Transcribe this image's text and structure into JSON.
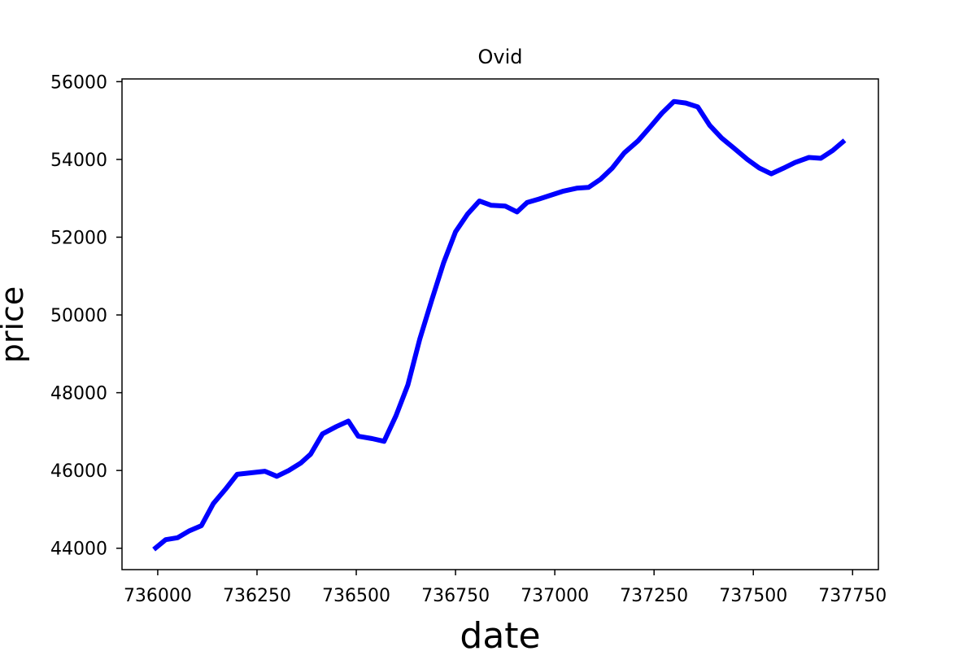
{
  "chart_data": {
    "type": "line",
    "title": "Ovid",
    "xlabel": "date",
    "ylabel": "price",
    "xlim": [
      735910,
      737815
    ],
    "ylim": [
      43450,
      56070
    ],
    "xticks": [
      736000,
      736250,
      736500,
      736750,
      737000,
      737250,
      737500,
      737750
    ],
    "yticks": [
      44000,
      46000,
      48000,
      50000,
      52000,
      54000,
      56000
    ],
    "grid": false,
    "legend": "none",
    "series": [
      {
        "color": "#0000ff",
        "x": [
          735990,
          736020,
          736050,
          736080,
          736110,
          736140,
          736170,
          736200,
          736235,
          736270,
          736300,
          736330,
          736360,
          736385,
          736415,
          736450,
          736480,
          736505,
          736540,
          736570,
          736600,
          736630,
          736660,
          736690,
          736720,
          736750,
          736780,
          736810,
          736840,
          736875,
          736905,
          736930,
          736960,
          736990,
          737020,
          737055,
          737085,
          737115,
          737145,
          737175,
          737210,
          737240,
          737270,
          737300,
          737330,
          737360,
          737390,
          737420,
          737450,
          737485,
          737515,
          737545,
          737575,
          737605,
          737640,
          737670,
          737700,
          737730
        ],
        "y": [
          43970,
          44220,
          44270,
          44450,
          44580,
          45150,
          45510,
          45900,
          45940,
          45980,
          45850,
          46000,
          46190,
          46420,
          46940,
          47130,
          47270,
          46880,
          46820,
          46750,
          47410,
          48200,
          49380,
          50380,
          51340,
          52140,
          52590,
          52930,
          52820,
          52800,
          52650,
          52890,
          52980,
          53080,
          53180,
          53260,
          53280,
          53490,
          53780,
          54170,
          54480,
          54830,
          55190,
          55490,
          55450,
          55350,
          54880,
          54550,
          54300,
          54000,
          53780,
          53630,
          53770,
          53920,
          54050,
          54030,
          54230,
          54490
        ]
      }
    ]
  }
}
